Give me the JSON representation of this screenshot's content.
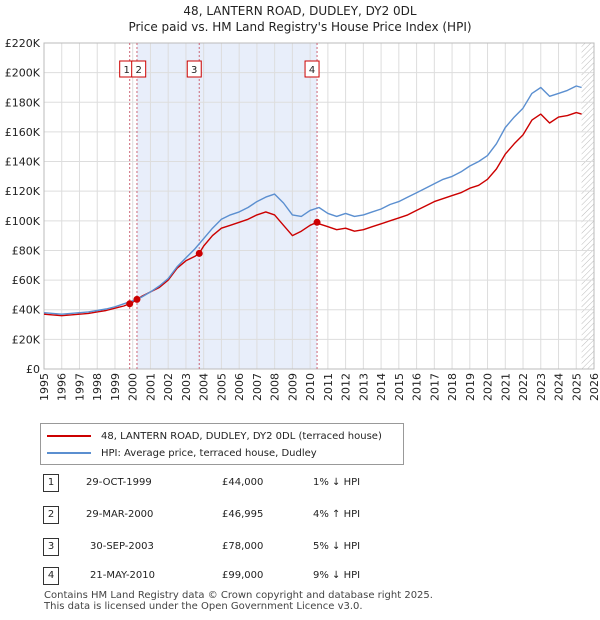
{
  "chart_data": {
    "type": "line",
    "title": "48, LANTERN ROAD, DUDLEY, DY2 0DL",
    "subtitle": "Price paid vs. HM Land Registry's House Price Index (HPI)",
    "xlabel": "",
    "ylabel": "",
    "xlim": [
      1995,
      2026
    ],
    "ylim": [
      0,
      220000
    ],
    "x_ticks": [
      "1995",
      "1996",
      "1997",
      "1998",
      "1999",
      "2000",
      "2001",
      "2002",
      "2003",
      "2004",
      "2005",
      "2006",
      "2007",
      "2008",
      "2009",
      "2010",
      "2011",
      "2012",
      "2013",
      "2014",
      "2015",
      "2016",
      "2017",
      "2018",
      "2019",
      "2020",
      "2021",
      "2022",
      "2023",
      "2024",
      "2025",
      "2026"
    ],
    "y_ticks": [
      {
        "value": 0,
        "label": "£0"
      },
      {
        "value": 20000,
        "label": "£20K"
      },
      {
        "value": 40000,
        "label": "£40K"
      },
      {
        "value": 60000,
        "label": "£60K"
      },
      {
        "value": 80000,
        "label": "£80K"
      },
      {
        "value": 100000,
        "label": "£100K"
      },
      {
        "value": 120000,
        "label": "£120K"
      },
      {
        "value": 140000,
        "label": "£140K"
      },
      {
        "value": 160000,
        "label": "£160K"
      },
      {
        "value": 180000,
        "label": "£180K"
      },
      {
        "value": 200000,
        "label": "£200K"
      },
      {
        "value": 220000,
        "label": "£220K"
      }
    ],
    "grid": true,
    "series": [
      {
        "name": "48, LANTERN ROAD, DUDLEY, DY2 0DL (terraced house)",
        "color": "#cc0000",
        "x": [
          1995.0,
          1995.5,
          1996.0,
          1996.5,
          1997.0,
          1997.5,
          1998.0,
          1998.5,
          1999.0,
          1999.5,
          1999.83,
          2000.0,
          2000.24,
          2000.5,
          2001.0,
          2001.5,
          2002.0,
          2002.5,
          2003.0,
          2003.5,
          2003.75,
          2004.0,
          2004.5,
          2005.0,
          2005.5,
          2006.0,
          2006.5,
          2007.0,
          2007.5,
          2008.0,
          2008.5,
          2009.0,
          2009.5,
          2010.0,
          2010.39,
          2010.5,
          2011.0,
          2011.5,
          2012.0,
          2012.5,
          2013.0,
          2013.5,
          2014.0,
          2014.5,
          2015.0,
          2015.5,
          2016.0,
          2016.5,
          2017.0,
          2017.5,
          2018.0,
          2018.5,
          2019.0,
          2019.5,
          2020.0,
          2020.5,
          2021.0,
          2021.5,
          2022.0,
          2022.5,
          2023.0,
          2023.5,
          2024.0,
          2024.5,
          2025.0,
          2025.3
        ],
        "values": [
          37000,
          36500,
          36000,
          36500,
          37000,
          37500,
          38500,
          39500,
          41000,
          42500,
          44000,
          45000,
          46995,
          49000,
          52000,
          55000,
          60000,
          68000,
          73000,
          76000,
          78000,
          83000,
          90000,
          95000,
          97000,
          99000,
          101000,
          104000,
          106000,
          104000,
          97000,
          90000,
          93000,
          97000,
          99000,
          98000,
          96000,
          94000,
          95000,
          93000,
          94000,
          96000,
          98000,
          100000,
          102000,
          104000,
          107000,
          110000,
          113000,
          115000,
          117000,
          119000,
          122000,
          124000,
          128000,
          135000,
          145000,
          152000,
          158000,
          168000,
          172000,
          166000,
          170000,
          171000,
          173000,
          172000
        ]
      },
      {
        "name": "HPI: Average price, terraced house, Dudley",
        "color": "#5b8fd0",
        "x": [
          1995.0,
          1995.5,
          1996.0,
          1996.5,
          1997.0,
          1997.5,
          1998.0,
          1998.5,
          1999.0,
          1999.5,
          2000.0,
          2000.5,
          2001.0,
          2001.5,
          2002.0,
          2002.5,
          2003.0,
          2003.5,
          2004.0,
          2004.5,
          2005.0,
          2005.5,
          2006.0,
          2006.5,
          2007.0,
          2007.5,
          2008.0,
          2008.5,
          2009.0,
          2009.5,
          2010.0,
          2010.5,
          2011.0,
          2011.5,
          2012.0,
          2012.5,
          2013.0,
          2013.5,
          2014.0,
          2014.5,
          2015.0,
          2015.5,
          2016.0,
          2016.5,
          2017.0,
          2017.5,
          2018.0,
          2018.5,
          2019.0,
          2019.5,
          2020.0,
          2020.5,
          2021.0,
          2021.5,
          2022.0,
          2022.5,
          2023.0,
          2023.5,
          2024.0,
          2024.5,
          2025.0,
          2025.3
        ],
        "values": [
          38000,
          37500,
          37000,
          37500,
          38000,
          38500,
          39500,
          40500,
          42000,
          44000,
          46000,
          48500,
          52000,
          56000,
          61000,
          69000,
          75000,
          81000,
          88000,
          95000,
          101000,
          104000,
          106000,
          109000,
          113000,
          116000,
          118000,
          112000,
          104000,
          103000,
          107000,
          109000,
          105000,
          103000,
          105000,
          103000,
          104000,
          106000,
          108000,
          111000,
          113000,
          116000,
          119000,
          122000,
          125000,
          128000,
          130000,
          133000,
          137000,
          140000,
          144000,
          152000,
          163000,
          170000,
          176000,
          186000,
          190000,
          184000,
          186000,
          188000,
          191000,
          190000
        ]
      }
    ],
    "transactions": [
      {
        "num": "1",
        "date": "29-OCT-1999",
        "x": 1999.83,
        "price": 44000,
        "price_label": "£44,000",
        "hpi": "1% ↓ HPI"
      },
      {
        "num": "2",
        "date": "29-MAR-2000",
        "x": 2000.24,
        "price": 46995,
        "price_label": "£46,995",
        "hpi": "4% ↑ HPI"
      },
      {
        "num": "3",
        "date": "30-SEP-2003",
        "x": 2003.75,
        "price": 78000,
        "price_label": "£78,000",
        "hpi": "5% ↓ HPI"
      },
      {
        "num": "4",
        "date": "21-MAY-2010",
        "x": 2010.39,
        "price": 99000,
        "price_label": "£99,000",
        "hpi": "9% ↓ HPI"
      }
    ],
    "shaded_ranges": [
      [
        2000.24,
        2010.39
      ]
    ],
    "future_hatch_from": 2025.3
  },
  "legend": {
    "property_label": "48, LANTERN ROAD, DUDLEY, DY2 0DL (terraced house)",
    "hpi_label": "HPI: Average price, terraced house, Dudley",
    "property_color": "#cc0000",
    "hpi_color": "#5b8fd0"
  },
  "footer": {
    "line1": "Contains HM Land Registry data © Crown copyright and database right 2025.",
    "line2": "This data is licensed under the Open Government Licence v3.0."
  }
}
